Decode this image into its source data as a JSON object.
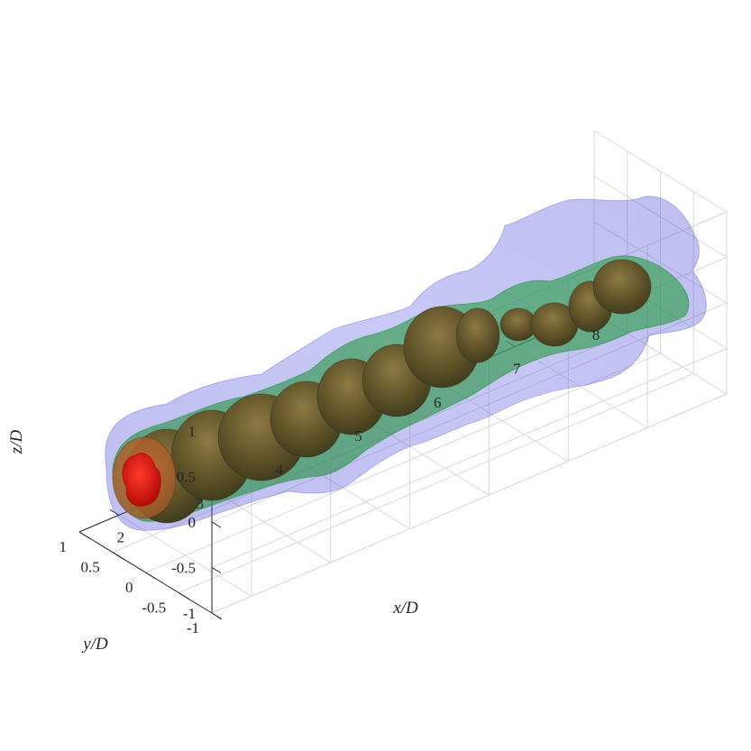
{
  "chart_data": {
    "type": "isosurface-3d",
    "title": "",
    "xlabel": "x/D",
    "ylabel": "y/D",
    "zlabel": "z/D",
    "xlim": [
      1.5,
      8
    ],
    "ylim": [
      -1,
      1
    ],
    "zlim": [
      -1,
      1
    ],
    "x_ticks": [
      "2",
      "3",
      "4",
      "5",
      "6",
      "7",
      "8"
    ],
    "y_ticks": [
      "1",
      "0.5",
      "0",
      "-0.5",
      "-1"
    ],
    "z_ticks": [
      "1",
      "0.5",
      "0",
      "-0.5",
      "-1"
    ],
    "grid": true,
    "isosurfaces": [
      {
        "level": "outer",
        "color": "#6a6ae6",
        "opacity": 0.35,
        "x_range": [
          1.5,
          8
        ]
      },
      {
        "level": "middle",
        "color": "#3fb25a",
        "opacity": 0.55,
        "x_range": [
          1.5,
          7.8
        ]
      },
      {
        "level": "inner",
        "color": "#6b5a2e",
        "opacity": 0.85,
        "x_range": [
          1.5,
          7.4
        ]
      },
      {
        "level": "core",
        "color": "#e01010",
        "opacity": 0.95,
        "x_range": [
          1.5,
          1.7
        ]
      }
    ]
  }
}
